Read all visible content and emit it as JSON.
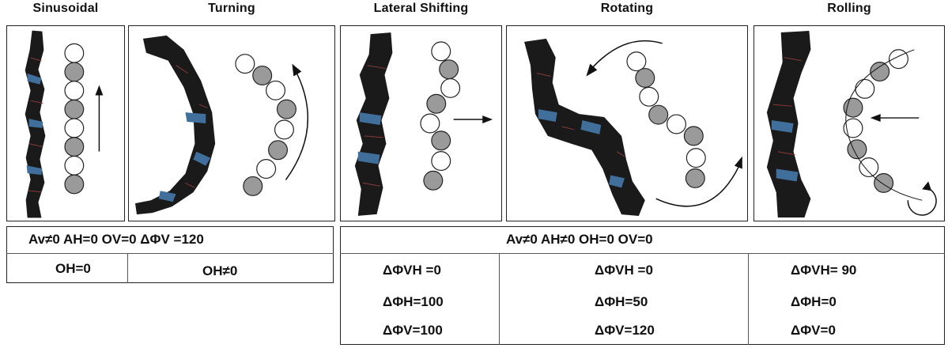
{
  "titles": {
    "sinusoidal": "Sinusoidal",
    "turning": "Turning",
    "lateral": "Lateral Shifting",
    "rotating": "Rotating",
    "rolling": "Rolling"
  },
  "left_table": {
    "row1": "Av≠0  AH=0  OV=0  ΔΦV =120",
    "row2_col1": "OH=0",
    "row2_col2": "OH≠0"
  },
  "right_table": {
    "row1": "Av≠0  AH≠0  OH=0   OV=0",
    "lateral": [
      "ΔΦVH =0",
      "ΔΦH=100",
      "ΔΦV=100"
    ],
    "rotating": [
      "ΔΦVH =0",
      "ΔΦH=50",
      "ΔΦV=120"
    ],
    "rolling": [
      "ΔΦVH= 90",
      "ΔΦH=0",
      "ΔΦV=0"
    ]
  },
  "colors": {
    "module_filled": "#9a9a9a",
    "module_empty": "#ffffff",
    "robot_dark": "#1a1a1a",
    "robot_blue": "#3f6f9a"
  }
}
